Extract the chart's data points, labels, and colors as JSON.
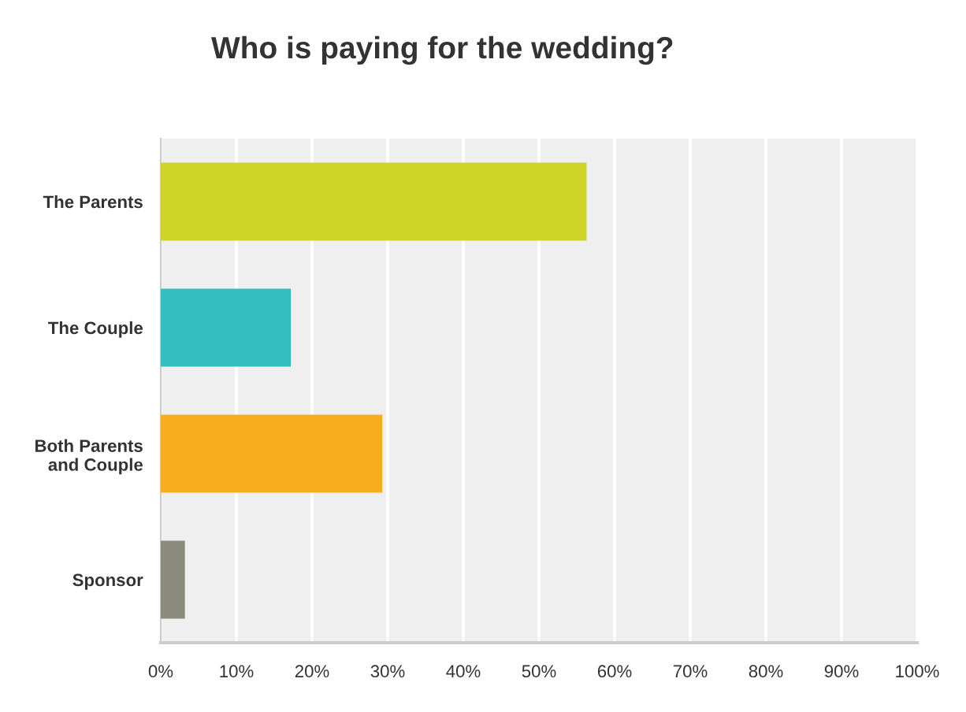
{
  "chart_data": {
    "type": "bar",
    "orientation": "horizontal",
    "title": "Who is paying for the wedding?",
    "categories": [
      "The Parents",
      "The Couple",
      "Both Parents\nand Couple",
      "Sponsor"
    ],
    "values": [
      56.3,
      17.2,
      29.3,
      3.2
    ],
    "colors": [
      "#cfd427",
      "#33bec0",
      "#f6ae1f",
      "#8b8b7b"
    ],
    "xlim": [
      0,
      100
    ],
    "xticks": [
      {
        "value": 0,
        "label": "0%"
      },
      {
        "value": 10,
        "label": "10%"
      },
      {
        "value": 20,
        "label": "20%"
      },
      {
        "value": 30,
        "label": "30%"
      },
      {
        "value": 40,
        "label": "40%"
      },
      {
        "value": 50,
        "label": "50%"
      },
      {
        "value": 60,
        "label": "60%"
      },
      {
        "value": 70,
        "label": "70%"
      },
      {
        "value": 80,
        "label": "80%"
      },
      {
        "value": 90,
        "label": "90%"
      },
      {
        "value": 100,
        "label": "100%"
      }
    ],
    "grid": "x"
  }
}
